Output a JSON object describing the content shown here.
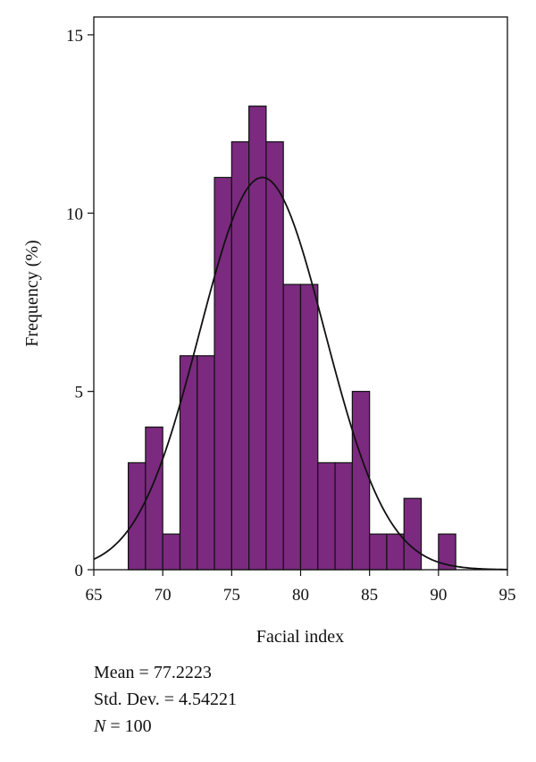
{
  "chart_data": {
    "type": "histogram",
    "xlabel": "Facial index",
    "ylabel": "Frequency (%)",
    "xlim": [
      65,
      95
    ],
    "ylim": [
      0,
      15.5
    ],
    "x_ticks": [
      65,
      70,
      75,
      80,
      85,
      90,
      95
    ],
    "y_ticks": [
      0,
      5,
      10,
      15
    ],
    "grid": false,
    "bar_color": "#7b2a7f",
    "bin_width": 1.25,
    "bins": [
      {
        "start": 67.5,
        "value": 3
      },
      {
        "start": 68.75,
        "value": 4
      },
      {
        "start": 70.0,
        "value": 1
      },
      {
        "start": 71.25,
        "value": 6
      },
      {
        "start": 72.5,
        "value": 6
      },
      {
        "start": 73.75,
        "value": 11
      },
      {
        "start": 75.0,
        "value": 12
      },
      {
        "start": 76.25,
        "value": 13
      },
      {
        "start": 77.5,
        "value": 12
      },
      {
        "start": 78.75,
        "value": 8
      },
      {
        "start": 80.0,
        "value": 8
      },
      {
        "start": 81.25,
        "value": 3
      },
      {
        "start": 82.5,
        "value": 3
      },
      {
        "start": 83.75,
        "value": 5
      },
      {
        "start": 85.0,
        "value": 1
      },
      {
        "start": 86.25,
        "value": 1
      },
      {
        "start": 87.5,
        "value": 2
      },
      {
        "start": 90.0,
        "value": 1
      }
    ],
    "normal_curve": {
      "mean": 77.2223,
      "std": 4.54221,
      "peak": 11.0
    }
  },
  "stats": {
    "mean_label": "Mean = 77.2223",
    "std_label": "Std. Dev. = 4.54221",
    "n_symbol": "N",
    "n_value": " = 100"
  }
}
